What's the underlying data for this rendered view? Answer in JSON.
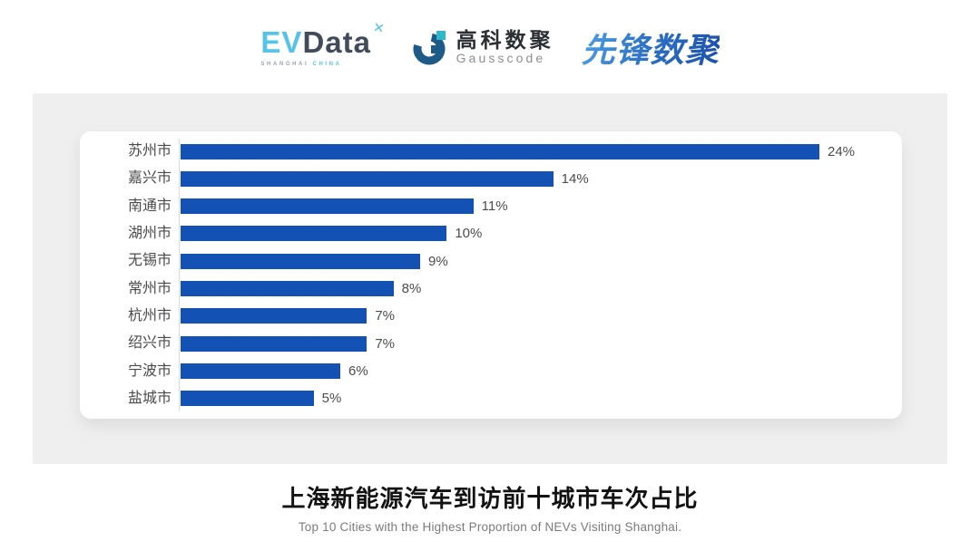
{
  "header": {
    "evdata_logo": {
      "part_ev": "EV",
      "part_data": "Data",
      "superscript": "✕",
      "tagline_left": "SHANGHAI",
      "tagline_right": "CHINA",
      "accent_color": "#56c3e8",
      "dark_color": "#414b5a"
    },
    "gausscode_logo": {
      "name_cn": "高科数聚",
      "name_en": "Gausscode",
      "icon_dark_color": "#1d5a88",
      "icon_teal_color": "#2fb8c9"
    },
    "pioneer_logo": {
      "text": "先锋数聚",
      "gradient_start": "#4f9fe2",
      "gradient_end": "#1b50ad"
    }
  },
  "chart_data": {
    "type": "bar",
    "orientation": "horizontal",
    "categories": [
      "苏州市",
      "嘉兴市",
      "南通市",
      "湖州市",
      "无锡市",
      "常州市",
      "杭州市",
      "绍兴市",
      "宁波市",
      "盐城市"
    ],
    "values": [
      24,
      14,
      11,
      10,
      9,
      8,
      7,
      7,
      6,
      5
    ],
    "value_labels": [
      "24%",
      "14%",
      "11%",
      "10%",
      "9%",
      "8%",
      "7%",
      "7%",
      "6%",
      "5%"
    ],
    "xlim": [
      0,
      24
    ],
    "bar_color": "#1351b5",
    "grid": false,
    "legend": false,
    "title": "上海新能源汽车到访前十城市车次占比",
    "subtitle": "Top 10 Cities with the Highest Proportion of  NEVs Visiting Shanghai."
  }
}
